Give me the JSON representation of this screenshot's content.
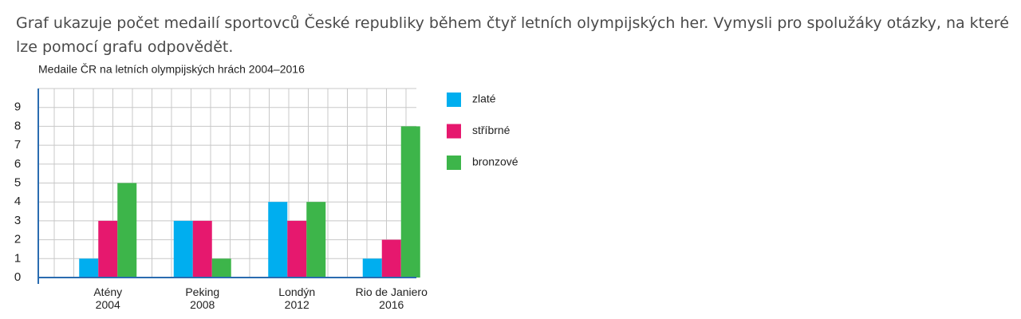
{
  "instruction": "Graf ukazuje počet medailí sportovců České republiky během čtyř letních olympijských her. Vymysli pro spolužáky otázky, na které lze pomocí grafu odpovědět.",
  "chart_data": {
    "type": "bar",
    "title": "Medaile ČR na letních olympijských hrách 2004–2016",
    "categories": [
      "Atény\n2004",
      "Peking\n2008",
      "Londýn\n2012",
      "Rio de Janiero\n2016"
    ],
    "series": [
      {
        "name": "zlaté",
        "color": "#00aeef",
        "values": [
          1,
          3,
          4,
          1
        ]
      },
      {
        "name": "stříbrné",
        "color": "#e6186e",
        "values": [
          3,
          3,
          3,
          2
        ]
      },
      {
        "name": "bronzové",
        "color": "#3db54a",
        "values": [
          5,
          1,
          4,
          8
        ]
      }
    ],
    "ylim": [
      0,
      10
    ],
    "yticks": [
      0,
      1,
      2,
      3,
      4,
      5,
      6,
      7,
      8,
      9
    ],
    "grid": true,
    "legend": "right"
  }
}
